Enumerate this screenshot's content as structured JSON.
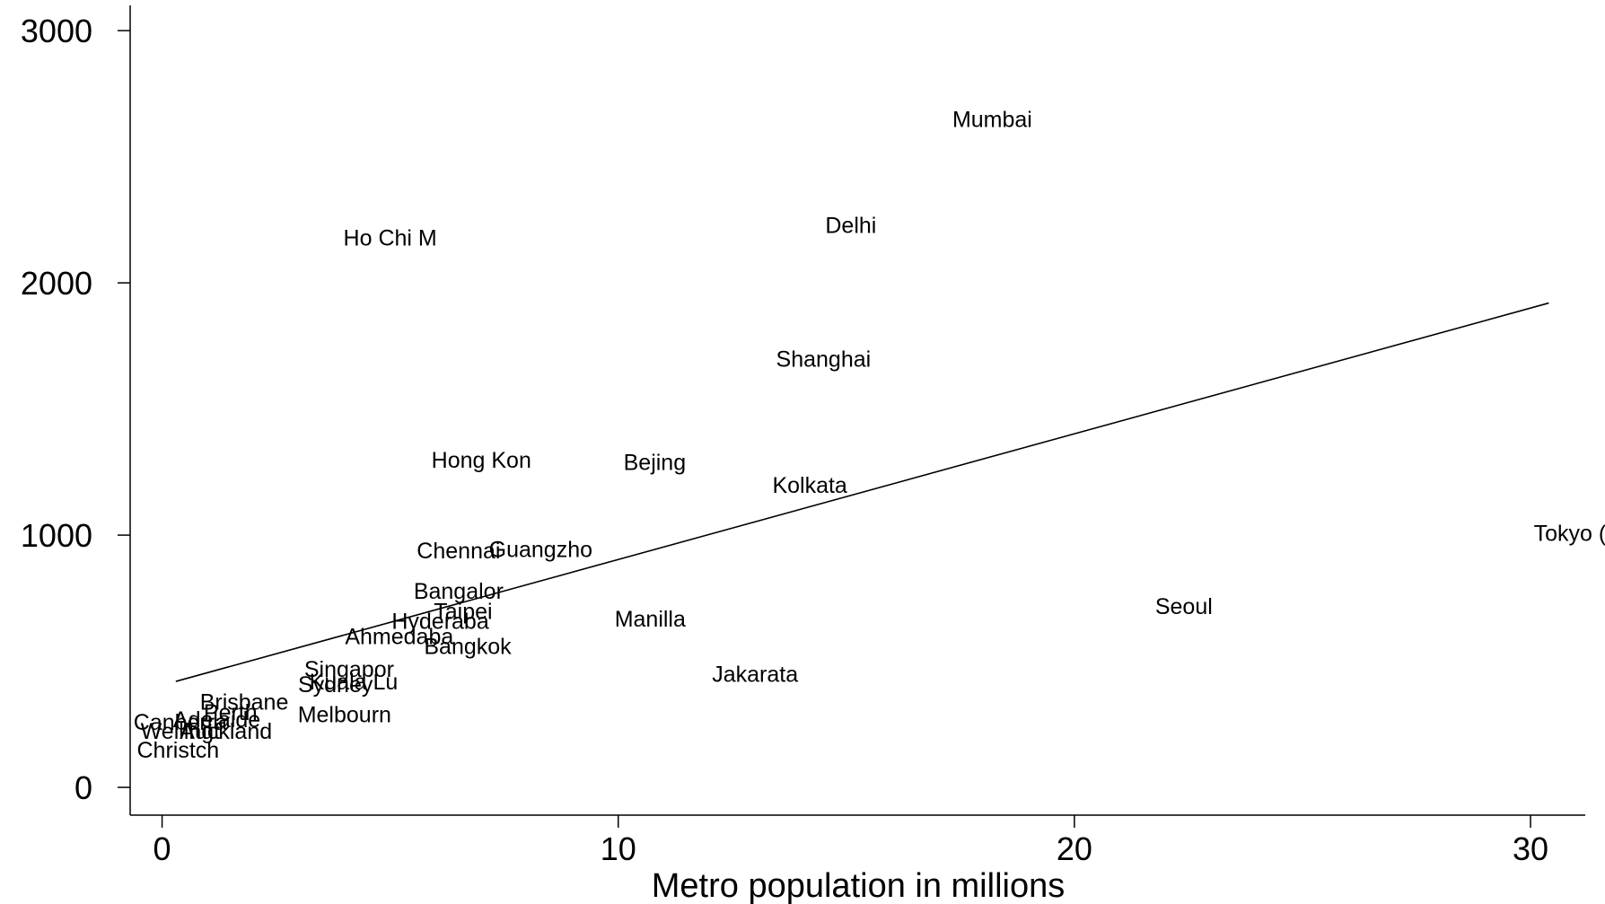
{
  "chart_data": {
    "type": "scatter",
    "title": "",
    "xlabel": "Metro population in millions",
    "ylabel": "",
    "xlim": [
      -0.7,
      31.2
    ],
    "ylim": [
      -110,
      3100
    ],
    "xticks": [
      "0",
      "10",
      "20",
      "30"
    ],
    "yticks": [
      "0",
      "1000",
      "2000",
      "3000"
    ],
    "grid": false,
    "legend": "none",
    "marker": "city-name label",
    "points": [
      {
        "label": "Mumbai",
        "x": 18.2,
        "y": 2650
      },
      {
        "label": "Delhi",
        "x": 15.1,
        "y": 2230
      },
      {
        "label": "Ho Chi M",
        "x": 5.0,
        "y": 2180
      },
      {
        "label": "Shanghai",
        "x": 14.5,
        "y": 1700
      },
      {
        "label": "Hong Kon",
        "x": 7.0,
        "y": 1300
      },
      {
        "label": "Bejing",
        "x": 10.8,
        "y": 1290
      },
      {
        "label": "Kolkata",
        "x": 14.2,
        "y": 1200
      },
      {
        "label": "Tokyo (u",
        "x": 31.0,
        "y": 1010
      },
      {
        "label": "Chennai",
        "x": 6.5,
        "y": 940
      },
      {
        "label": "Guangzho",
        "x": 8.3,
        "y": 945
      },
      {
        "label": "Bangalor",
        "x": 6.5,
        "y": 780
      },
      {
        "label": "Seoul",
        "x": 22.4,
        "y": 720
      },
      {
        "label": "Taipei",
        "x": 6.6,
        "y": 700
      },
      {
        "label": "Hyderaba",
        "x": 6.1,
        "y": 660
      },
      {
        "label": "Manilla",
        "x": 10.7,
        "y": 670
      },
      {
        "label": "Ahmedaba",
        "x": 5.2,
        "y": 600
      },
      {
        "label": "Bangkok",
        "x": 6.7,
        "y": 560
      },
      {
        "label": "Jakarata",
        "x": 13.0,
        "y": 450
      },
      {
        "label": "Singapor",
        "x": 4.1,
        "y": 470
      },
      {
        "label": "Kuala Lu",
        "x": 4.2,
        "y": 420
      },
      {
        "label": "Sydney",
        "x": 3.8,
        "y": 410
      },
      {
        "label": "Brisbane",
        "x": 1.8,
        "y": 340
      },
      {
        "label": "Perth",
        "x": 1.5,
        "y": 300
      },
      {
        "label": "Melbourn",
        "x": 4.0,
        "y": 290
      },
      {
        "label": "Adelaide",
        "x": 1.2,
        "y": 270
      },
      {
        "label": "Canberra",
        "x": 0.4,
        "y": 260
      },
      {
        "label": "Wellingt",
        "x": 0.4,
        "y": 225
      },
      {
        "label": "Auckland",
        "x": 1.4,
        "y": 225
      },
      {
        "label": "Christch",
        "x": 0.35,
        "y": 150
      }
    ],
    "fit_line": {
      "x": [
        0.3,
        30.4
      ],
      "y": [
        420,
        1920
      ]
    }
  }
}
